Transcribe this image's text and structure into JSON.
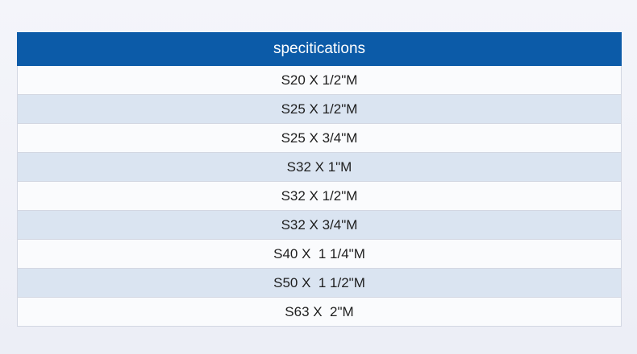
{
  "table": {
    "header": "specitications",
    "rows": [
      "S20 X 1/2\"M",
      "S25 X 1/2\"M",
      "S25 X 3/4\"M",
      "S32 X 1\"M",
      "S32 X 1/2\"M",
      "S32 X 3/4\"M",
      "S40 X  1 1/4\"M",
      "S50 X  1 1/2\"M",
      "S63 X  2\"M"
    ],
    "colors": {
      "header_bg": "#0c5ba8",
      "header_text": "#ffffff",
      "row_light": "#fafbfd",
      "row_shaded": "#dae4f1",
      "border": "#d3d7e2"
    }
  }
}
